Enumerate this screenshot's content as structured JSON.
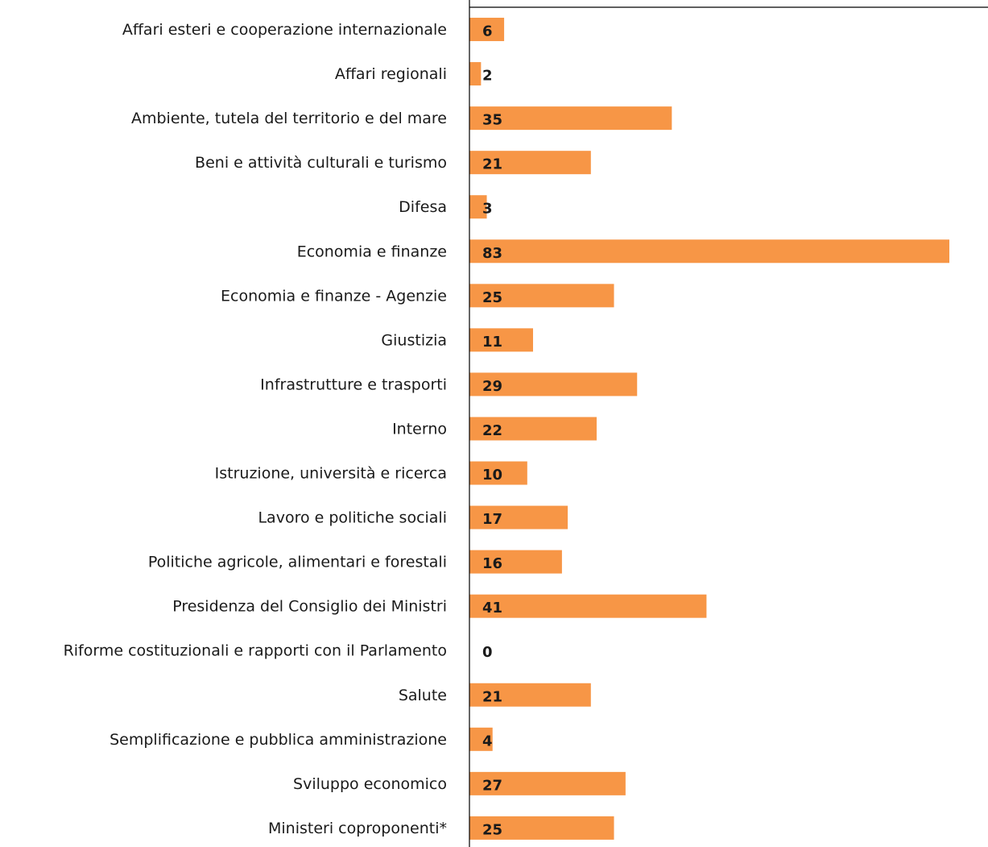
{
  "chart_data": {
    "type": "bar",
    "orientation": "horizontal",
    "title": "",
    "xlabel": "",
    "ylabel": "",
    "categories": [
      "Affari esteri e cooperazione internazionale",
      "Affari regionali",
      "Ambiente, tutela del territorio e del mare",
      "Beni e attività culturali e turismo",
      "Difesa",
      "Economia e finanze",
      "Economia e finanze - Agenzie",
      "Giustizia",
      "Infrastrutture e trasporti",
      "Interno",
      "Istruzione, università e ricerca",
      "Lavoro e politiche sociali",
      "Politiche agricole, alimentari e forestali",
      "Presidenza del Consiglio dei Ministri",
      "Riforme costituzionali e rapporti con il Parlamento",
      "Salute",
      "Semplificazione e pubblica amministrazione",
      "Sviluppo economico",
      "Ministeri coproponenti*"
    ],
    "values": [
      6,
      2,
      35,
      21,
      3,
      83,
      25,
      11,
      29,
      22,
      10,
      17,
      16,
      41,
      0,
      21,
      4,
      27,
      25
    ],
    "xlim": [
      0,
      83
    ],
    "grid": false,
    "legend": "none",
    "bar_color": "#F79646",
    "axis_color": "#000000"
  }
}
